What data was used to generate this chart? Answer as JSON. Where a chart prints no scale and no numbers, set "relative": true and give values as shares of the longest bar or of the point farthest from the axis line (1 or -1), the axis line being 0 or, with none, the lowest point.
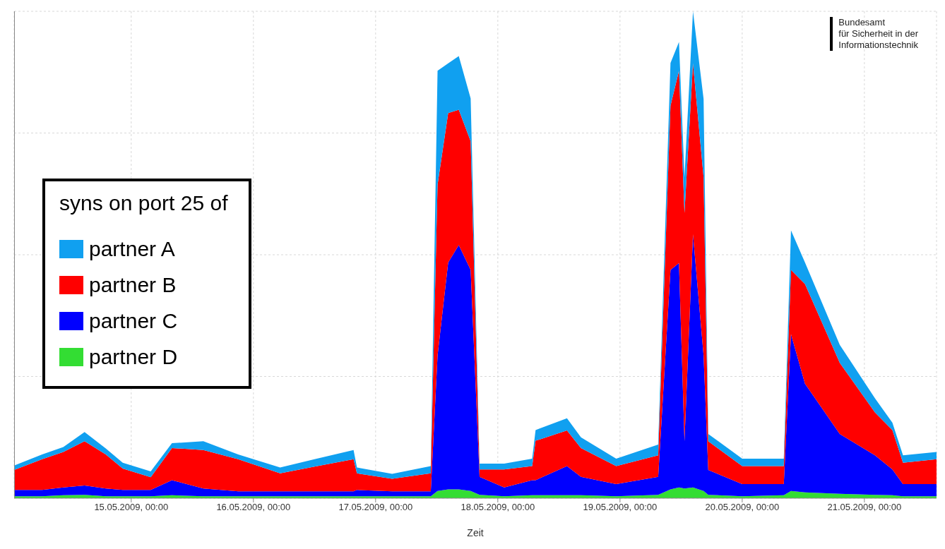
{
  "chart_data": {
    "type": "area",
    "stacked": true,
    "relative": true,
    "xlabel": "Zeit",
    "legend_title": "syns on port 25 of",
    "legend": "left",
    "grid": true,
    "annotations": [
      "Bundesamt\nfür Sicherheit in der\nInformationstechnik"
    ],
    "xlim": [
      "2009-05-14T01:00",
      "2009-05-21T14:10"
    ],
    "xticks": [
      {
        "value": "2009-05-15T00:00",
        "label": "15.05.2009, 00:00"
      },
      {
        "value": "2009-05-16T00:00",
        "label": "16.05.2009, 00:00"
      },
      {
        "value": "2009-05-17T00:00",
        "label": "17.05.2009, 00:00"
      },
      {
        "value": "2009-05-18T00:00",
        "label": "18.05.2009, 00:00"
      },
      {
        "value": "2009-05-19T00:00",
        "label": "19.05.2009, 00:00"
      },
      {
        "value": "2009-05-20T00:00",
        "label": "20.05.2009, 00:00"
      },
      {
        "value": "2009-05-21T00:00",
        "label": "21.05.2009, 00:00"
      }
    ],
    "x": [
      "2009-05-14T01:00",
      "2009-05-14T06:30",
      "2009-05-14T10:40",
      "2009-05-14T14:50",
      "2009-05-14T19:00",
      "2009-05-14T22:20",
      "2009-05-15T03:50",
      "2009-05-15T08:00",
      "2009-05-15T14:10",
      "2009-05-15T21:00",
      "2009-05-16T05:15",
      "2009-05-16T12:00",
      "2009-05-16T19:40",
      "2009-05-16T20:20",
      "2009-05-17T03:15",
      "2009-05-17T10:50",
      "2009-05-17T12:10",
      "2009-05-17T14:15",
      "2009-05-17T16:20",
      "2009-05-17T18:40",
      "2009-05-17T20:25",
      "2009-05-18T01:15",
      "2009-05-18T06:45",
      "2009-05-18T07:25",
      "2009-05-18T13:35",
      "2009-05-18T16:20",
      "2009-05-18T23:15",
      "2009-05-19T07:30",
      "2009-05-19T09:55",
      "2009-05-19T11:35",
      "2009-05-19T12:40",
      "2009-05-19T14:20",
      "2009-05-19T16:25",
      "2009-05-19T17:20",
      "2009-05-20T00:00",
      "2009-05-20T08:10",
      "2009-05-20T09:35",
      "2009-05-20T12:20",
      "2009-05-20T19:10",
      "2009-05-21T02:05",
      "2009-05-21T05:30",
      "2009-05-21T07:35",
      "2009-05-21T14:10"
    ],
    "series": [
      {
        "name": "partner D",
        "color": "#33dd33",
        "values": [
          0.004,
          0.004,
          0.006,
          0.007,
          0.004,
          0.004,
          0.004,
          0.006,
          0.004,
          0.004,
          0.004,
          0.004,
          0.004,
          0.004,
          0.004,
          0.004,
          0.015,
          0.018,
          0.018,
          0.015,
          0.007,
          0.004,
          0.006,
          0.006,
          0.006,
          0.006,
          0.004,
          0.007,
          0.018,
          0.022,
          0.02,
          0.022,
          0.015,
          0.007,
          0.004,
          0.006,
          0.015,
          0.012,
          0.009,
          0.007,
          0.006,
          0.004,
          0.004
        ]
      },
      {
        "name": "partner C",
        "color": "#0000ff",
        "values": [
          0.013,
          0.013,
          0.016,
          0.019,
          0.016,
          0.013,
          0.013,
          0.031,
          0.016,
          0.01,
          0.01,
          0.01,
          0.01,
          0.013,
          0.01,
          0.01,
          0.278,
          0.466,
          0.502,
          0.454,
          0.037,
          0.018,
          0.031,
          0.031,
          0.06,
          0.038,
          0.025,
          0.037,
          0.451,
          0.461,
          0.097,
          0.52,
          0.278,
          0.051,
          0.025,
          0.023,
          0.322,
          0.223,
          0.123,
          0.081,
          0.053,
          0.025,
          0.025
        ]
      },
      {
        "name": "partner B",
        "color": "#ff0000",
        "values": [
          0.041,
          0.063,
          0.073,
          0.091,
          0.07,
          0.044,
          0.026,
          0.066,
          0.079,
          0.066,
          0.037,
          0.051,
          0.066,
          0.034,
          0.026,
          0.037,
          0.351,
          0.307,
          0.278,
          0.264,
          0.015,
          0.037,
          0.029,
          0.081,
          0.073,
          0.059,
          0.037,
          0.044,
          0.337,
          0.395,
          0.469,
          0.351,
          0.366,
          0.059,
          0.037,
          0.037,
          0.132,
          0.205,
          0.146,
          0.088,
          0.081,
          0.044,
          0.051
        ]
      },
      {
        "name": "partner A",
        "color": "#10a0f0",
        "values": [
          0.009,
          0.01,
          0.01,
          0.019,
          0.012,
          0.012,
          0.012,
          0.01,
          0.018,
          0.01,
          0.012,
          0.015,
          0.019,
          0.012,
          0.01,
          0.015,
          0.234,
          0.102,
          0.11,
          0.088,
          0.012,
          0.012,
          0.015,
          0.022,
          0.025,
          0.022,
          0.015,
          0.022,
          0.088,
          0.059,
          0.073,
          0.107,
          0.161,
          0.015,
          0.015,
          0.015,
          0.081,
          0.044,
          0.037,
          0.029,
          0.015,
          0.015,
          0.015
        ]
      }
    ]
  }
}
